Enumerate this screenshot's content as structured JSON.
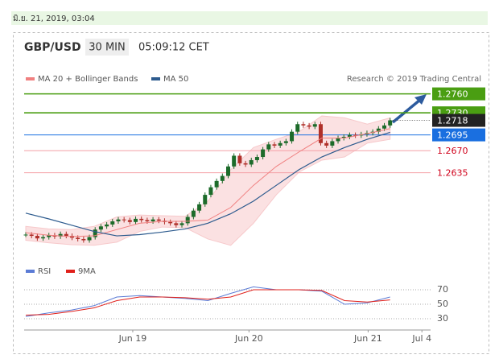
{
  "chart_data": {
    "type": "candlestick",
    "date_stamp": "มิ.ย. 21, 2019, 03:04",
    "symbol": "GBP/USD",
    "interval": "30 MIN",
    "time": "05:09:12 CET",
    "credit": "Research © 2019 Trading Central",
    "ylim": [
      1.2507,
      1.2771
    ],
    "xlim": [
      0,
      70
    ],
    "xticks": [
      {
        "value": 18.5,
        "label": "Jun 19"
      },
      {
        "value": 38.6,
        "label": "Jun 20"
      },
      {
        "value": 59.2,
        "label": "Jun 21"
      },
      {
        "value": 68.5,
        "label": "Jul 4"
      }
    ],
    "up_color": "#1d6b2a",
    "down_color": "#b0302a",
    "closes": [
      1.2537,
      1.2535,
      1.2531,
      1.2533,
      1.2536,
      1.2534,
      1.2538,
      1.2535,
      1.2532,
      1.253,
      1.2528,
      1.2533,
      1.2545,
      1.255,
      1.2553,
      1.2558,
      1.2561,
      1.256,
      1.2557,
      1.2562,
      1.256,
      1.2558,
      1.2561,
      1.2559,
      1.2557,
      1.2555,
      1.2552,
      1.2555,
      1.2565,
      1.2575,
      1.2585,
      1.26,
      1.2612,
      1.2622,
      1.263,
      1.2645,
      1.2662,
      1.265,
      1.2648,
      1.2655,
      1.266,
      1.2672,
      1.268,
      1.2678,
      1.2682,
      1.2685,
      1.27,
      1.2712,
      1.271,
      1.2708,
      1.2712,
      1.2682,
      1.2678,
      1.2685,
      1.269,
      1.2692,
      1.2695,
      1.2694,
      1.2696,
      1.2698,
      1.27,
      1.2705,
      1.271,
      1.2718
    ],
    "levels": [
      {
        "value": 1.276,
        "label": "1.2760",
        "color": "#4a9e12",
        "style": "box"
      },
      {
        "value": 1.273,
        "label": "1.2730",
        "color": "#4a9e12",
        "style": "box"
      },
      {
        "value": 1.2718,
        "label": "1.2718",
        "color": "#222222",
        "style": "current"
      },
      {
        "value": 1.2695,
        "label": "1.2695",
        "color": "#1a6fe0",
        "style": "box"
      },
      {
        "value": 1.267,
        "label": "1.2670",
        "color": "#d0021b",
        "style": "text"
      },
      {
        "value": 1.2635,
        "label": "1.2635",
        "color": "#d0021b",
        "style": "text"
      }
    ],
    "bollinger": {
      "color": "#f7c9cb",
      "upper": [
        1.255,
        1.2546,
        1.2545,
        1.255,
        1.2565,
        1.2568,
        1.2567,
        1.2566,
        1.259,
        1.264,
        1.2675,
        1.2688,
        1.27,
        1.2725,
        1.2722,
        1.2712,
        1.2722
      ],
      "lower": [
        1.2528,
        1.2524,
        1.2521,
        1.252,
        1.2525,
        1.2542,
        1.2549,
        1.2548,
        1.253,
        1.252,
        1.2555,
        1.26,
        1.2636,
        1.2655,
        1.266,
        1.2682,
        1.2688
      ]
    },
    "series": [
      {
        "name": "MA 20 + Bollinger Bands",
        "color": "#f08080",
        "values": [
          1.254,
          1.2536,
          1.2534,
          1.2535,
          1.2545,
          1.2555,
          1.2558,
          1.2558,
          1.256,
          1.258,
          1.2615,
          1.2645,
          1.2668,
          1.269,
          1.269,
          1.2697,
          1.2705
        ]
      },
      {
        "name": "MA 50",
        "color": "#2d5b8e",
        "values": [
          1.2571,
          1.2562,
          1.2552,
          1.2542,
          1.2535,
          1.2537,
          1.2541,
          1.2546,
          1.2555,
          1.257,
          1.259,
          1.2615,
          1.264,
          1.266,
          1.2675,
          1.2688,
          1.2699
        ]
      }
    ],
    "rsi": {
      "ylim": [
        20,
        85
      ],
      "yticks": [
        70,
        50,
        30
      ],
      "series": [
        {
          "name": "RSI",
          "color": "#5b7bd5",
          "values": [
            33,
            38,
            42,
            48,
            60,
            62,
            60,
            58,
            55,
            65,
            74,
            70,
            70,
            68,
            50,
            52,
            60
          ]
        },
        {
          "name": "9MA",
          "color": "#e0201b",
          "values": [
            35,
            36,
            40,
            45,
            55,
            60,
            60,
            59,
            57,
            60,
            70,
            70,
            70,
            69,
            55,
            53,
            56
          ]
        }
      ]
    }
  }
}
